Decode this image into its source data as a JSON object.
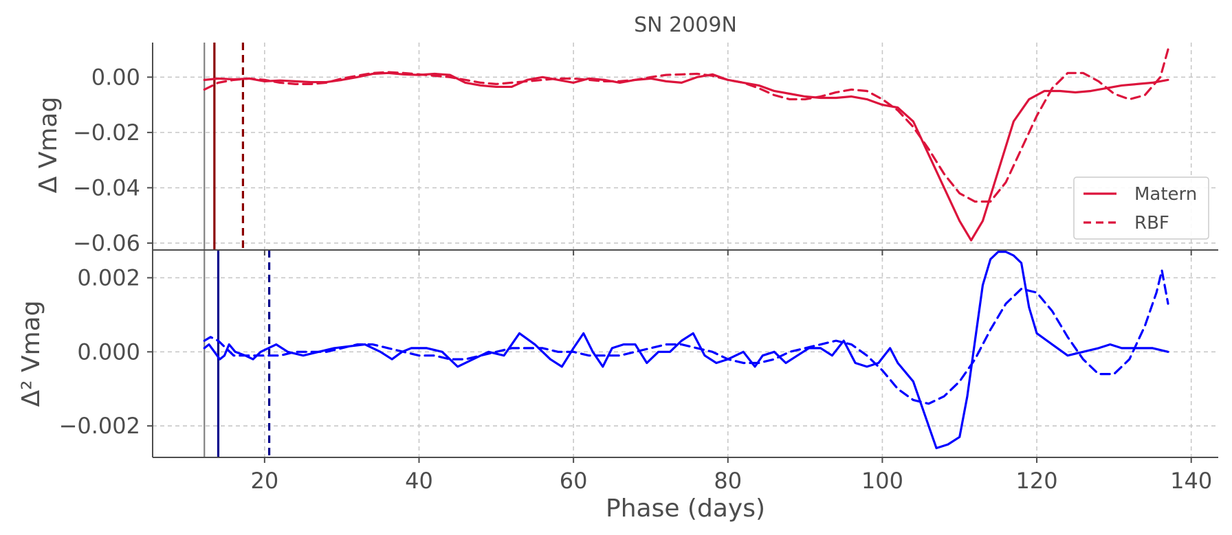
{
  "chart_data": {
    "type": "line",
    "title": "SN 2009N",
    "xlabel": "Phase (days)",
    "xlim": [
      5.5,
      143.5
    ],
    "xticks": [
      20,
      40,
      60,
      80,
      100,
      120,
      140
    ],
    "xtick_labels": [
      "20",
      "40",
      "60",
      "80",
      "100",
      "120",
      "140"
    ],
    "grid": true,
    "vertical_markers": [
      {
        "x": 12.2,
        "color": "#808080",
        "style": "solid",
        "panels": [
          "top",
          "bottom"
        ]
      },
      {
        "x": 13.5,
        "color": "#8b0000",
        "style": "solid",
        "panels": [
          "top"
        ]
      },
      {
        "x": 17.2,
        "color": "#8b0000",
        "style": "dashed",
        "panels": [
          "top"
        ]
      },
      {
        "x": 14.0,
        "color": "#00008b",
        "style": "solid",
        "panels": [
          "bottom"
        ]
      },
      {
        "x": 20.6,
        "color": "#00008b",
        "style": "dashed",
        "panels": [
          "bottom"
        ]
      }
    ],
    "panels": [
      {
        "id": "top",
        "ylabel": "Δ Vmag",
        "ylim": [
          -0.0625,
          0.0125
        ],
        "yticks": [
          0.0,
          -0.02,
          -0.04,
          -0.06
        ],
        "ytick_labels": [
          "0.00",
          "−0.02",
          "−0.04",
          "−0.06"
        ],
        "legend": {
          "placement": "lower-right",
          "entries": [
            "Matern",
            "RBF"
          ]
        },
        "series": [
          {
            "name": "Matern",
            "color": "#dc143c",
            "style": "solid",
            "x": [
              12.2,
              14,
              16,
              18,
              20,
              22,
              24,
              26,
              28,
              30,
              32,
              34,
              36,
              38,
              40,
              42,
              44,
              46,
              48,
              50,
              52,
              54,
              56,
              58,
              60,
              62,
              64,
              66,
              68,
              70,
              72,
              74,
              76,
              78,
              80,
              82,
              84,
              86,
              88,
              90,
              92,
              94,
              96,
              98,
              100,
              102,
              104,
              106,
              108,
              110,
              111.5,
              113,
              115,
              117,
              119,
              121,
              123,
              125,
              127,
              129,
              131,
              133,
              135,
              137
            ],
            "y": [
              -0.001,
              -0.0005,
              -0.0008,
              -0.0005,
              -0.0015,
              -0.0012,
              -0.0015,
              -0.0018,
              -0.0018,
              -0.001,
              0.0,
              0.0012,
              0.0015,
              0.001,
              0.0008,
              0.0012,
              0.0008,
              -0.002,
              -0.003,
              -0.0035,
              -0.0035,
              -0.001,
              0.0,
              -0.001,
              -0.002,
              -0.0005,
              -0.001,
              -0.002,
              -0.001,
              -0.0005,
              -0.0015,
              -0.002,
              0.0,
              0.001,
              -0.001,
              -0.002,
              -0.003,
              -0.005,
              -0.006,
              -0.007,
              -0.0075,
              -0.0075,
              -0.007,
              -0.008,
              -0.01,
              -0.011,
              -0.016,
              -0.028,
              -0.04,
              -0.052,
              -0.059,
              -0.052,
              -0.034,
              -0.016,
              -0.008,
              -0.005,
              -0.005,
              -0.0055,
              -0.005,
              -0.004,
              -0.003,
              -0.0025,
              -0.002,
              -0.001
            ]
          },
          {
            "name": "RBF",
            "color": "#dc143c",
            "style": "dashed",
            "x": [
              12.2,
              14,
              16,
              18,
              20,
              22,
              24,
              26,
              28,
              30,
              32,
              34,
              36,
              38,
              40,
              42,
              44,
              46,
              48,
              50,
              52,
              54,
              56,
              58,
              60,
              62,
              64,
              66,
              68,
              70,
              72,
              74,
              76,
              78,
              80,
              82,
              84,
              86,
              88,
              90,
              92,
              94,
              96,
              98,
              100,
              102,
              104,
              106,
              108,
              110,
              112,
              114,
              116,
              118,
              120,
              122,
              124,
              126,
              128,
              130,
              132,
              134,
              136,
              137
            ],
            "y": [
              -0.0045,
              -0.002,
              -0.001,
              -0.0005,
              -0.001,
              -0.002,
              -0.0025,
              -0.0025,
              -0.002,
              -0.0005,
              0.0005,
              0.0015,
              0.0018,
              0.0015,
              0.001,
              0.0005,
              0.0,
              -0.001,
              -0.002,
              -0.0025,
              -0.002,
              -0.0015,
              -0.001,
              -0.0005,
              -0.0005,
              -0.001,
              -0.0015,
              -0.0015,
              -0.001,
              0.0,
              0.0008,
              0.001,
              0.0012,
              0.0005,
              -0.001,
              -0.002,
              -0.004,
              -0.0065,
              -0.008,
              -0.008,
              -0.007,
              -0.0055,
              -0.0045,
              -0.005,
              -0.008,
              -0.012,
              -0.018,
              -0.026,
              -0.035,
              -0.042,
              -0.045,
              -0.045,
              -0.038,
              -0.026,
              -0.014,
              -0.004,
              0.0015,
              0.0015,
              -0.0015,
              -0.006,
              -0.008,
              -0.0065,
              0.0,
              0.01
            ]
          }
        ]
      },
      {
        "id": "bottom",
        "ylabel": "Δ² Vmag",
        "ylim": [
          -0.00285,
          0.00275
        ],
        "yticks": [
          0.002,
          0.0,
          -0.002
        ],
        "ytick_labels": [
          "0.002",
          "0.000",
          "−0.002"
        ],
        "series": [
          {
            "name": "Matern",
            "color": "#0000ff",
            "style": "solid",
            "x": [
              12.2,
              12.8,
              13.5,
              14.2,
              14.8,
              15.4,
              16.2,
              17.5,
              18.5,
              19.5,
              20.5,
              21.5,
              23,
              25,
              27,
              29,
              31,
              33,
              35,
              36.5,
              37.8,
              39,
              41,
              43,
              45,
              47,
              49,
              51,
              53,
              55,
              57,
              58.5,
              60,
              61.3,
              62.5,
              63.8,
              65,
              66.5,
              68,
              69.5,
              71,
              72.5,
              74,
              75.5,
              77,
              78.5,
              80,
              82,
              83.5,
              84.5,
              86,
              87.5,
              89,
              90.5,
              92,
              93.5,
              95,
              96.5,
              98,
              99.5,
              101,
              102,
              104,
              105.5,
              107,
              108.5,
              110,
              111,
              112,
              113,
              114,
              115,
              116,
              117,
              118,
              119,
              120,
              122,
              124,
              126,
              128,
              129.5,
              131,
              133,
              135,
              137
            ],
            "y": [
              0.0001,
              0.0002,
              0.0,
              -0.0002,
              -0.0001,
              0.0002,
              0.0,
              -0.0001,
              -0.0002,
              0.0,
              0.0001,
              0.0002,
              0.0,
              -0.0001,
              0.0,
              0.0001,
              0.00015,
              0.0002,
              0.0,
              -0.0002,
              0.0,
              0.0001,
              0.0001,
              0.0,
              -0.0004,
              -0.0002,
              0.0,
              -0.0001,
              0.0005,
              0.0002,
              -0.0002,
              -0.0004,
              0.0001,
              0.0005,
              0.0,
              -0.0004,
              0.0001,
              0.0002,
              0.0002,
              -0.0003,
              0.0,
              0.0,
              0.0003,
              0.0005,
              -0.0001,
              -0.0003,
              -0.0002,
              0.0,
              -0.0004,
              -0.0001,
              0.0,
              -0.0003,
              -0.0001,
              0.0001,
              0.0001,
              -0.0001,
              0.0003,
              -0.0003,
              -0.0004,
              -0.0003,
              0.0001,
              -0.0003,
              -0.0008,
              -0.0017,
              -0.0026,
              -0.0025,
              -0.0023,
              -0.0012,
              0.0003,
              0.0018,
              0.0025,
              0.0027,
              0.0027,
              0.0026,
              0.0024,
              0.0012,
              0.0005,
              0.0002,
              -0.0001,
              0.0,
              0.0001,
              0.0002,
              0.0001,
              0.0001,
              0.0001,
              0.0
            ]
          },
          {
            "name": "RBF",
            "color": "#0000ff",
            "style": "dashed",
            "x": [
              12.2,
              13,
              14,
              15,
              16,
              18,
              20,
              22,
              24,
              26,
              28,
              30,
              32,
              34,
              36,
              38,
              40,
              42,
              44,
              46,
              48,
              50,
              52,
              54,
              56,
              58,
              60,
              62,
              64,
              66,
              68,
              70,
              72,
              74,
              76,
              78,
              80,
              82,
              84,
              86,
              88,
              90,
              92,
              94,
              96,
              98,
              100,
              102,
              104,
              106,
              108,
              110,
              112,
              114,
              116,
              118,
              120,
              122,
              124,
              126,
              128,
              130,
              132,
              134,
              135.5,
              136.2,
              137
            ],
            "y": [
              0.0003,
              0.0004,
              0.0003,
              0.0001,
              -0.0001,
              -0.0001,
              -0.0001,
              -0.0001,
              0.0,
              0.0,
              0.0,
              0.0001,
              0.0002,
              0.0002,
              0.0001,
              0.0,
              -0.0001,
              -0.0001,
              -0.0002,
              -0.0002,
              -0.0001,
              0.0,
              0.0001,
              0.0001,
              0.0001,
              0.0,
              0.0,
              -0.0001,
              -0.0001,
              -0.0001,
              0.0,
              0.0001,
              0.0002,
              0.0002,
              0.0001,
              0.0,
              -0.0002,
              -0.0003,
              -0.0003,
              -0.0002,
              0.0,
              0.0001,
              0.0002,
              0.0003,
              0.0002,
              -0.0001,
              -0.0005,
              -0.001,
              -0.0013,
              -0.0014,
              -0.0012,
              -0.0008,
              -0.0002,
              0.0006,
              0.0013,
              0.0017,
              0.0016,
              0.0011,
              0.0004,
              -0.0002,
              -0.0006,
              -0.0006,
              -0.0002,
              0.0007,
              0.0016,
              0.0022,
              0.0013
            ]
          }
        ]
      }
    ]
  }
}
